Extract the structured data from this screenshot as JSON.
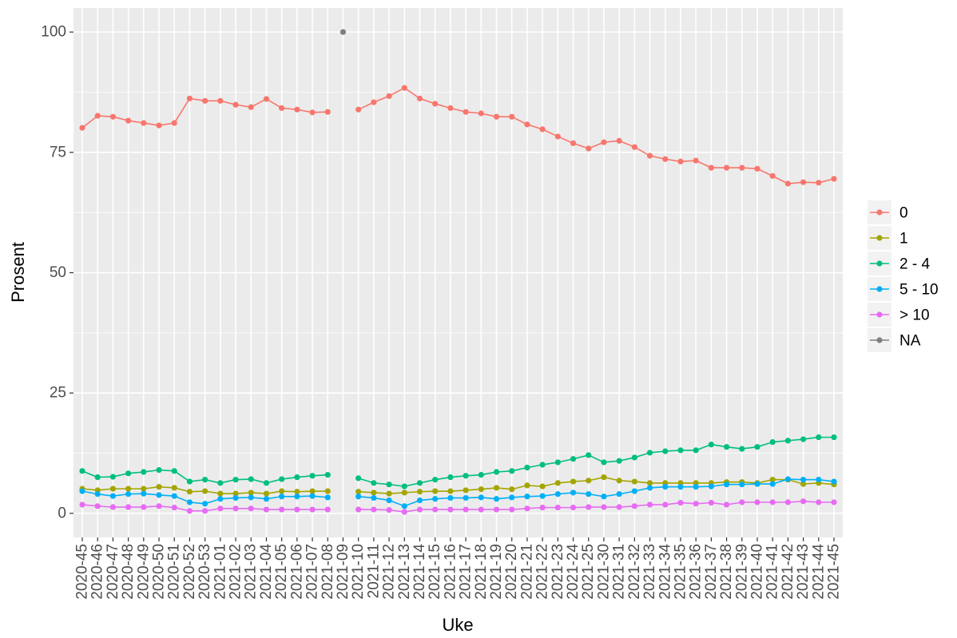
{
  "chart_data": {
    "type": "line",
    "x_label": "Uke",
    "y_label": "Prosent",
    "categories": [
      "2020-45",
      "2020-46",
      "2020-47",
      "2020-48",
      "2020-49",
      "2020-50",
      "2020-51",
      "2020-52",
      "2020-53",
      "2021-01",
      "2021-02",
      "2021-03",
      "2021-04",
      "2021-05",
      "2021-06",
      "2021-07",
      "2021-08",
      "2021-09",
      "2021-10",
      "2021-11",
      "2021-12",
      "2021-13",
      "2021-14",
      "2021-15",
      "2021-16",
      "2021-17",
      "2021-18",
      "2021-19",
      "2021-20",
      "2021-21",
      "2021-22",
      "2021-23",
      "2021-24",
      "2021-25",
      "2021-30",
      "2021-31",
      "2021-32",
      "2021-33",
      "2021-34",
      "2021-35",
      "2021-36",
      "2021-37",
      "2021-38",
      "2021-39",
      "2021-40",
      "2021-41",
      "2021-42",
      "2021-43",
      "2021-44",
      "2021-45"
    ],
    "series": [
      {
        "name": "0",
        "color": "#F8766D",
        "values": [
          80.1,
          82.6,
          82.4,
          81.6,
          81.1,
          80.6,
          81.1,
          86.2,
          85.7,
          85.7,
          84.9,
          84.4,
          86.1,
          84.2,
          83.9,
          83.3,
          83.4,
          null,
          83.9,
          85.4,
          86.7,
          88.4,
          86.2,
          85.1,
          84.2,
          83.4,
          83.1,
          82.4,
          82.4,
          80.8,
          79.8,
          78.3,
          76.9,
          75.8,
          77.1,
          77.4,
          76.1,
          74.3,
          73.6,
          73.1,
          73.3,
          71.8,
          71.8,
          71.8,
          71.6,
          70.1,
          68.5,
          68.8,
          68.7,
          69.5
        ]
      },
      {
        "name": "1",
        "color": "#A3A500",
        "values": [
          5.1,
          4.8,
          5.1,
          5.1,
          5.1,
          5.5,
          5.3,
          4.5,
          4.6,
          4.1,
          4.1,
          4.3,
          4.1,
          4.6,
          4.5,
          4.6,
          4.6,
          null,
          4.5,
          4.3,
          4.1,
          4.3,
          4.5,
          4.6,
          4.6,
          4.8,
          5.0,
          5.3,
          5.0,
          5.8,
          5.6,
          6.3,
          6.6,
          6.8,
          7.5,
          6.8,
          6.6,
          6.3,
          6.3,
          6.3,
          6.3,
          6.3,
          6.5,
          6.5,
          6.3,
          7.0,
          7.0,
          6.1,
          6.3,
          6.0
        ]
      },
      {
        "name": "2 - 4",
        "color": "#00BF7D",
        "values": [
          8.8,
          7.5,
          7.6,
          8.3,
          8.6,
          9.0,
          8.8,
          6.6,
          7.0,
          6.3,
          7.0,
          7.1,
          6.3,
          7.1,
          7.5,
          7.8,
          8.0,
          null,
          7.3,
          6.3,
          6.0,
          5.6,
          6.3,
          7.0,
          7.5,
          7.8,
          8.0,
          8.6,
          8.8,
          9.5,
          10.1,
          10.6,
          11.3,
          12.1,
          10.6,
          10.9,
          11.6,
          12.6,
          12.9,
          13.1,
          13.1,
          14.3,
          13.8,
          13.4,
          13.8,
          14.8,
          15.1,
          15.4,
          15.8,
          15.8
        ]
      },
      {
        "name": "5 - 10",
        "color": "#00B0F6",
        "values": [
          4.6,
          4.0,
          3.6,
          4.0,
          4.1,
          3.8,
          3.6,
          2.3,
          2.0,
          3.0,
          3.2,
          3.3,
          3.0,
          3.5,
          3.5,
          3.6,
          3.3,
          null,
          3.5,
          3.2,
          2.7,
          1.5,
          2.7,
          3.0,
          3.2,
          3.2,
          3.3,
          3.0,
          3.3,
          3.5,
          3.6,
          4.0,
          4.3,
          4.0,
          3.5,
          4.0,
          4.6,
          5.3,
          5.5,
          5.5,
          5.5,
          5.6,
          6.0,
          6.0,
          6.1,
          6.1,
          7.1,
          7.0,
          7.0,
          6.6
        ]
      },
      {
        "name": "> 10",
        "color": "#E76BF3",
        "values": [
          1.8,
          1.5,
          1.3,
          1.3,
          1.3,
          1.5,
          1.2,
          0.5,
          0.5,
          1.0,
          1.0,
          1.0,
          0.8,
          0.8,
          0.8,
          0.8,
          0.8,
          null,
          0.8,
          0.8,
          0.7,
          0.3,
          0.8,
          0.8,
          0.8,
          0.8,
          0.8,
          0.8,
          0.8,
          1.0,
          1.2,
          1.2,
          1.2,
          1.3,
          1.3,
          1.3,
          1.5,
          1.8,
          1.8,
          2.2,
          2.0,
          2.2,
          1.8,
          2.3,
          2.3,
          2.3,
          2.3,
          2.5,
          2.3,
          2.3
        ]
      },
      {
        "name": "NA",
        "color": "#7F7F7F",
        "values": [
          null,
          null,
          null,
          null,
          null,
          null,
          null,
          null,
          null,
          null,
          null,
          null,
          null,
          null,
          null,
          null,
          null,
          100,
          null,
          null,
          null,
          null,
          null,
          null,
          null,
          null,
          null,
          null,
          null,
          null,
          null,
          null,
          null,
          null,
          null,
          null,
          null,
          null,
          null,
          null,
          null,
          null,
          null,
          null,
          null,
          null,
          null,
          null,
          null,
          null
        ]
      }
    ],
    "ylim": [
      -5,
      105
    ],
    "yticks": [
      0,
      25,
      50,
      75,
      100
    ],
    "grid": true,
    "legend": "right"
  }
}
